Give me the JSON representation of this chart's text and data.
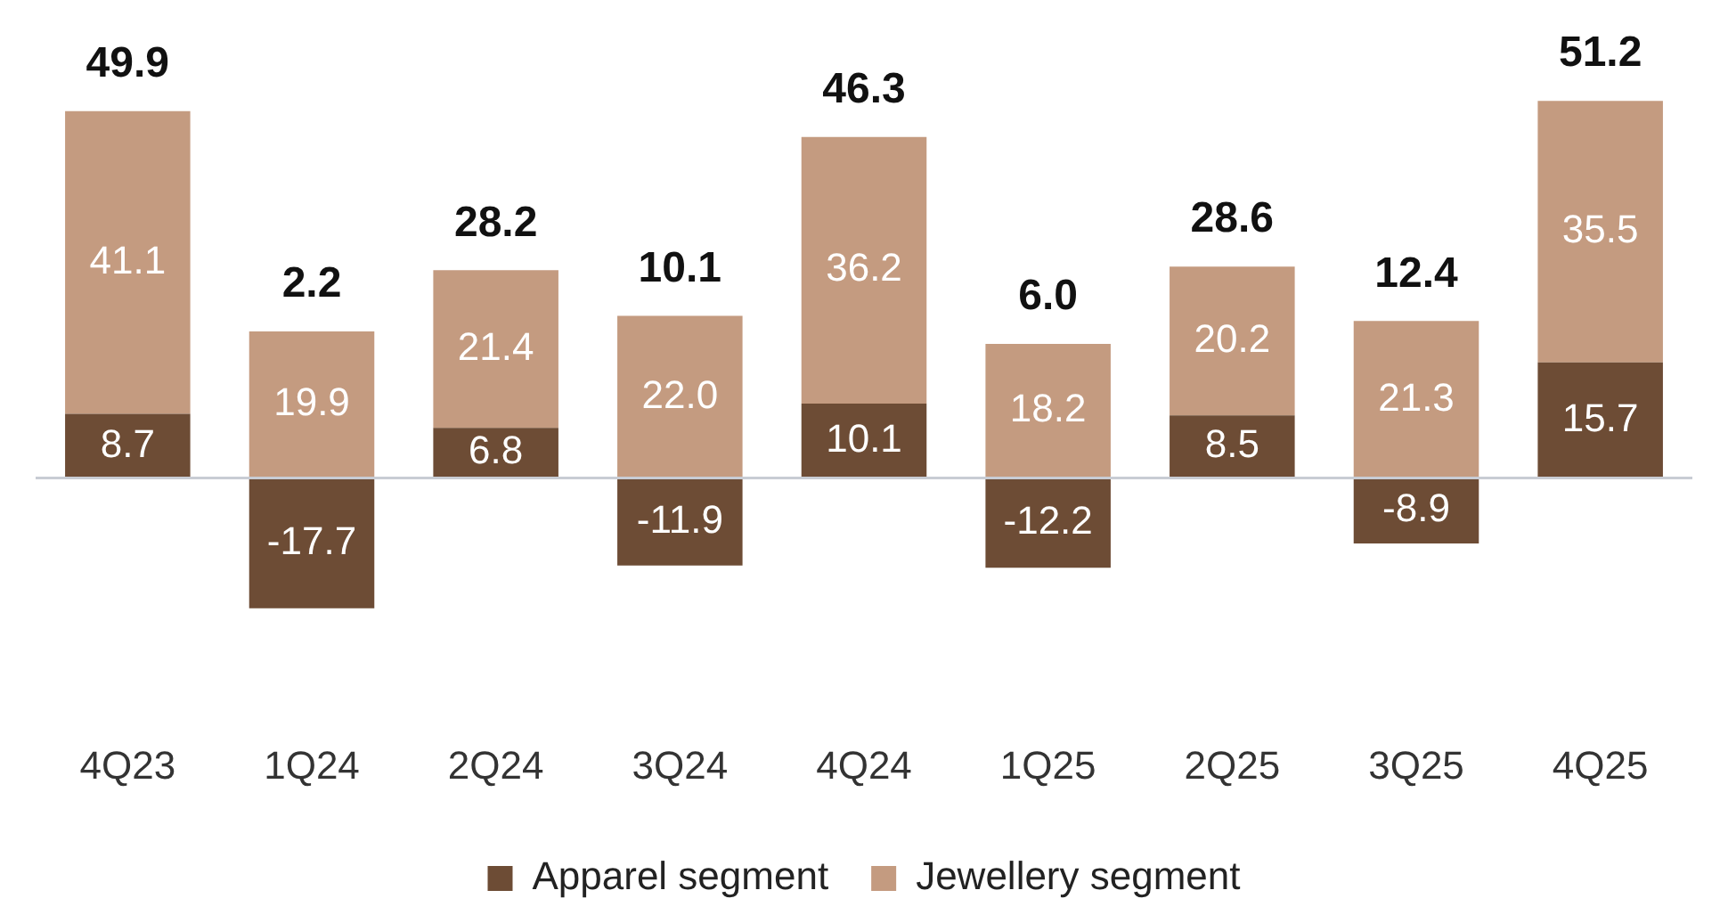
{
  "chart_data": {
    "type": "bar",
    "stacked": true,
    "categories": [
      "4Q23",
      "1Q24",
      "2Q24",
      "3Q24",
      "4Q24",
      "1Q25",
      "2Q25",
      "3Q25",
      "4Q25"
    ],
    "series": [
      {
        "name": "Apparel segment",
        "color": "#6d4c35",
        "values": [
          8.7,
          -17.7,
          6.8,
          -11.9,
          10.1,
          -12.2,
          8.5,
          -8.9,
          15.7
        ],
        "value_labels": [
          "8.7",
          "-17.7",
          "6.8",
          "-11.9",
          "10.1",
          "-12.2",
          "8.5",
          "-8.9",
          "15.7"
        ]
      },
      {
        "name": "Jewellery segment",
        "color": "#c49b80",
        "values": [
          41.1,
          19.9,
          21.4,
          22.0,
          36.2,
          18.2,
          20.2,
          21.3,
          35.5
        ],
        "value_labels": [
          "41.1",
          "19.9",
          "21.4",
          "22.0",
          "36.2",
          "18.2",
          "20.2",
          "21.3",
          "35.5"
        ]
      }
    ],
    "totals": [
      "49.9",
      "2.2",
      "28.2",
      "10.1",
      "46.3",
      "6.0",
      "28.6",
      "12.4",
      "51.2"
    ],
    "legend": "bottom",
    "grid": false
  }
}
